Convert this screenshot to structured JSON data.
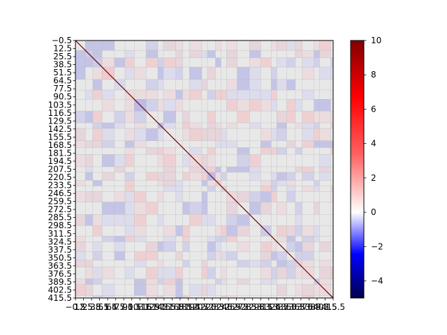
{
  "chart_data": {
    "type": "heatmap",
    "title": "",
    "xlabel": "",
    "ylabel": "",
    "size": 416,
    "extent": [
      -0.5,
      415.5
    ],
    "diagonal_value": 10,
    "y_ticks": [
      "−0.5",
      "12.5",
      "25.5",
      "38.5",
      "51.5",
      "64.5",
      "77.5",
      "90.5",
      "103.5",
      "116.5",
      "129.5",
      "142.5",
      "155.5",
      "168.5",
      "181.5",
      "194.5",
      "207.5",
      "220.5",
      "233.5",
      "246.5",
      "259.5",
      "272.5",
      "285.5",
      "298.5",
      "311.5",
      "324.5",
      "337.5",
      "350.5",
      "363.5",
      "376.5",
      "389.5",
      "402.5",
      "415.5"
    ],
    "x_ticks": [
      "−0.5",
      "12.5",
      "25.5",
      "38.5",
      "51.5",
      "64.5",
      "77.5",
      "90.5",
      "103.5",
      "116.5",
      "129.5",
      "142.5",
      "155.5",
      "168.5",
      "181.5",
      "194.5",
      "207.5",
      "220.5",
      "233.5",
      "246.5",
      "259.5",
      "272.5",
      "285.5",
      "298.5",
      "311.5",
      "324.5",
      "337.5",
      "350.5",
      "363.5",
      "376.5",
      "389.5",
      "402.5",
      "415.5"
    ],
    "colorbar": {
      "cmap": "seismic",
      "vmin": -5,
      "vmax": 10,
      "center": 0,
      "ticks": [
        {
          "value": 10,
          "label": "10"
        },
        {
          "value": 8,
          "label": "8"
        },
        {
          "value": 6,
          "label": "6"
        },
        {
          "value": 4,
          "label": "4"
        },
        {
          "value": 2,
          "label": "2"
        },
        {
          "value": 0,
          "label": "0"
        },
        {
          "value": -2,
          "label": "−2"
        },
        {
          "value": -4,
          "label": "−4"
        }
      ]
    },
    "grid": false
  }
}
